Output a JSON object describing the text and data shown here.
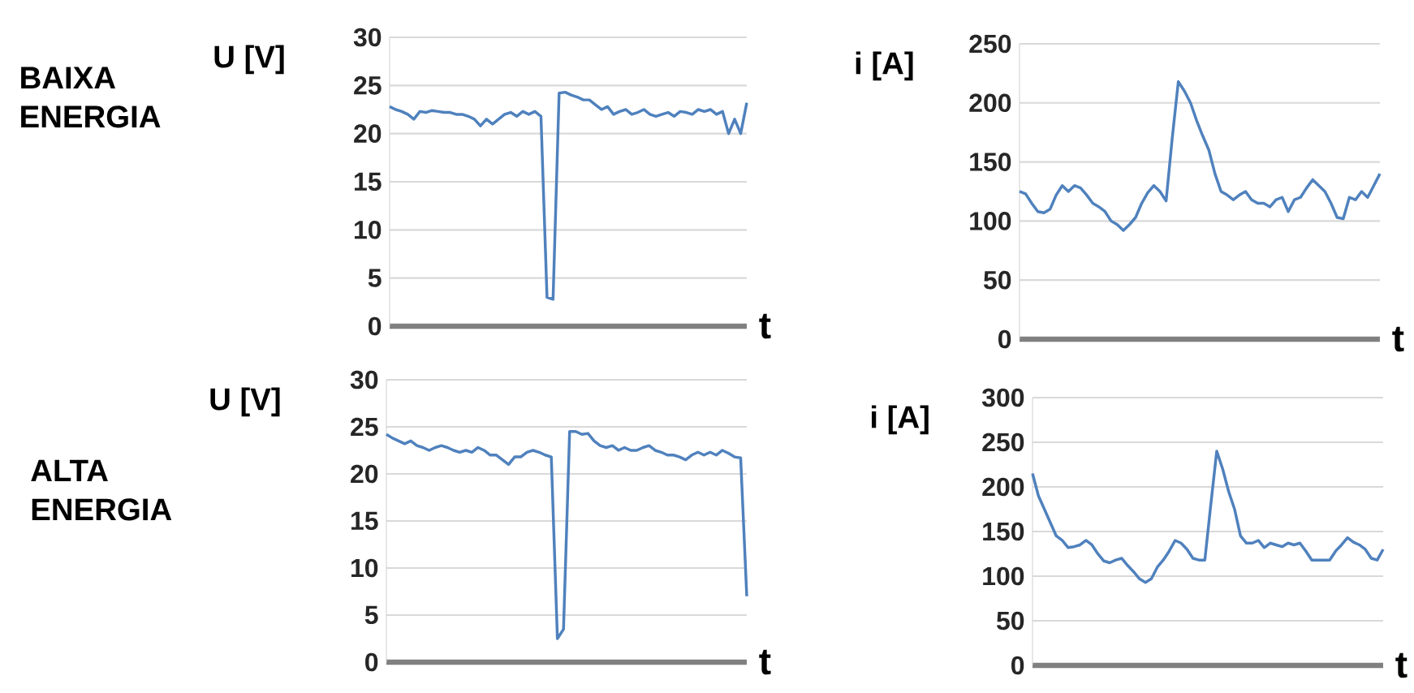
{
  "chart_data": [
    {
      "type": "line",
      "ylabel": "U [V]",
      "xlabel": "t",
      "grid": "y",
      "ylim": [
        0,
        30
      ],
      "yticks": [
        0,
        5,
        10,
        15,
        20,
        25,
        30
      ],
      "annotations": [
        "BAIXA ENERGIA"
      ],
      "categories": [
        null,
        null,
        null,
        null,
        null,
        null,
        null,
        null,
        null,
        null,
        null,
        null,
        null,
        null,
        null,
        null,
        null,
        null,
        null,
        null,
        null,
        null,
        null,
        null,
        null,
        null,
        null,
        null,
        null,
        null,
        null,
        null,
        null,
        null,
        null,
        null,
        null,
        null,
        null,
        null,
        null,
        null,
        null,
        null,
        null,
        null,
        null,
        null,
        null,
        null,
        null,
        null,
        null,
        null,
        null,
        null,
        null,
        null,
        null,
        null
      ],
      "series": [
        {
          "color": "#4f81bd",
          "values": [
            22.8,
            22.5,
            22.3,
            22,
            21.5,
            22.3,
            22.2,
            22.4,
            22.3,
            22.2,
            22.2,
            22,
            22,
            21.8,
            21.5,
            20.8,
            21.5,
            21,
            21.5,
            22,
            22.2,
            21.8,
            22.3,
            22,
            22.3,
            21.8,
            3,
            2.8,
            24.2,
            24.3,
            24,
            23.8,
            23.5,
            23.5,
            23,
            22.5,
            22.8,
            22,
            22.3,
            22.5,
            22,
            22.2,
            22.5,
            22,
            21.8,
            22,
            22.2,
            21.8,
            22.3,
            22.2,
            22,
            22.5,
            22.3,
            22.5,
            22,
            22.3,
            20,
            21.5,
            20,
            23.2
          ]
        }
      ]
    },
    {
      "type": "line",
      "ylabel": "i [A]",
      "xlabel": "t",
      "grid": "y",
      "ylim": [
        0,
        250
      ],
      "yticks": [
        0,
        50,
        100,
        150,
        200,
        250
      ],
      "categories": [
        null,
        null,
        null,
        null,
        null,
        null,
        null,
        null,
        null,
        null,
        null,
        null,
        null,
        null,
        null,
        null,
        null,
        null,
        null,
        null,
        null,
        null,
        null,
        null,
        null,
        null,
        null,
        null,
        null,
        null,
        null,
        null,
        null,
        null,
        null,
        null,
        null,
        null,
        null,
        null,
        null,
        null,
        null,
        null,
        null,
        null,
        null,
        null,
        null,
        null,
        null,
        null,
        null,
        null,
        null,
        null,
        null,
        null,
        null,
        null
      ],
      "series": [
        {
          "color": "#4f81bd",
          "values": [
            125,
            123,
            115,
            108,
            107,
            110,
            122,
            130,
            125,
            130,
            128,
            122,
            115,
            112,
            108,
            100,
            97,
            92,
            97,
            103,
            115,
            124,
            130,
            125,
            117,
            170,
            218,
            210,
            200,
            185,
            172,
            160,
            140,
            125,
            122,
            118,
            122,
            125,
            118,
            115,
            115,
            112,
            118,
            120,
            108,
            118,
            120,
            128,
            135,
            130,
            125,
            115,
            103,
            102,
            120,
            118,
            125,
            120,
            130,
            140
          ]
        }
      ]
    },
    {
      "type": "line",
      "ylabel": "U [V]",
      "xlabel": "t",
      "grid": "y",
      "ylim": [
        0,
        30
      ],
      "yticks": [
        0,
        5,
        10,
        15,
        20,
        25,
        30
      ],
      "annotations": [
        "ALTA ENERGIA"
      ],
      "categories": [
        null,
        null,
        null,
        null,
        null,
        null,
        null,
        null,
        null,
        null,
        null,
        null,
        null,
        null,
        null,
        null,
        null,
        null,
        null,
        null,
        null,
        null,
        null,
        null,
        null,
        null,
        null,
        null,
        null,
        null,
        null,
        null,
        null,
        null,
        null,
        null,
        null,
        null,
        null,
        null,
        null,
        null,
        null,
        null,
        null,
        null,
        null,
        null,
        null,
        null,
        null,
        null,
        null,
        null,
        null,
        null,
        null,
        null,
        null,
        null
      ],
      "series": [
        {
          "color": "#4f81bd",
          "values": [
            24.2,
            23.8,
            23.5,
            23.2,
            23.5,
            23,
            22.8,
            22.5,
            22.8,
            23,
            22.8,
            22.5,
            22.3,
            22.5,
            22.3,
            22.8,
            22.5,
            22,
            22,
            21.5,
            21,
            21.8,
            21.8,
            22.3,
            22.5,
            22.3,
            22,
            21.8,
            2.5,
            3.5,
            24.5,
            24.5,
            24.2,
            24.3,
            23.5,
            23,
            22.8,
            23,
            22.5,
            22.8,
            22.5,
            22.5,
            22.8,
            23,
            22.5,
            22.3,
            22,
            22,
            21.8,
            21.5,
            22,
            22.3,
            22,
            22.3,
            22,
            22.5,
            22.2,
            21.8,
            21.7,
            7
          ]
        }
      ]
    },
    {
      "type": "line",
      "ylabel": "i [A]",
      "xlabel": "t",
      "grid": "y",
      "ylim": [
        0,
        300
      ],
      "yticks": [
        0,
        50,
        100,
        150,
        200,
        250,
        300
      ],
      "categories": [
        null,
        null,
        null,
        null,
        null,
        null,
        null,
        null,
        null,
        null,
        null,
        null,
        null,
        null,
        null,
        null,
        null,
        null,
        null,
        null,
        null,
        null,
        null,
        null,
        null,
        null,
        null,
        null,
        null,
        null,
        null,
        null,
        null,
        null,
        null,
        null,
        null,
        null,
        null,
        null,
        null,
        null,
        null,
        null,
        null,
        null,
        null,
        null,
        null,
        null,
        null,
        null,
        null,
        null,
        null,
        null,
        null,
        null,
        null,
        null
      ],
      "series": [
        {
          "color": "#4f81bd",
          "values": [
            215,
            190,
            175,
            160,
            145,
            140,
            132,
            133,
            135,
            140,
            135,
            125,
            117,
            115,
            118,
            120,
            112,
            105,
            97,
            93,
            97,
            110,
            118,
            128,
            140,
            137,
            130,
            120,
            118,
            118,
            180,
            240,
            220,
            195,
            175,
            145,
            137,
            137,
            140,
            132,
            137,
            135,
            133,
            137,
            135,
            137,
            128,
            118,
            118,
            118,
            118,
            128,
            135,
            143,
            138,
            135,
            130,
            120,
            118,
            130
          ]
        }
      ]
    }
  ]
}
